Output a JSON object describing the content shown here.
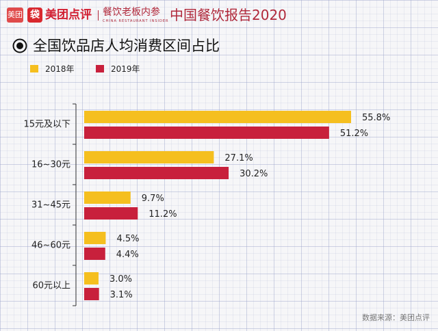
{
  "header": {
    "badge": "美团",
    "brand_mark": "袋",
    "brand_name": "美团点评",
    "partner_name": "餐饮老板内参",
    "partner_sub": "CHINA RESTAURANT INSIDER",
    "report_title": "中国餐饮报告2020"
  },
  "colors": {
    "y2018": "#f5bf1f",
    "y2019": "#c8203c",
    "axis": "#333333",
    "text": "#222222"
  },
  "source": "数据来源：美团点评",
  "chart_data": {
    "type": "bar",
    "orientation": "horizontal",
    "title": "全国饮品店人均消费区间占比",
    "categories": [
      "15元及以下",
      "16~30元",
      "31~45元",
      "46~60元",
      "60元以上"
    ],
    "series": [
      {
        "name": "2018年",
        "values": [
          55.8,
          27.1,
          9.7,
          4.5,
          3.0
        ],
        "labels": [
          "55.8%",
          "27.1%",
          "9.7%",
          "4.5%",
          "3.0%"
        ]
      },
      {
        "name": "2019年",
        "values": [
          51.2,
          30.2,
          11.2,
          4.4,
          3.1
        ],
        "labels": [
          "51.2%",
          "30.2%",
          "11.2%",
          "4.4%",
          "3.1%"
        ]
      }
    ],
    "unit": "%",
    "xlim": [
      0,
      60
    ],
    "legend": "top-left",
    "grid": false
  }
}
